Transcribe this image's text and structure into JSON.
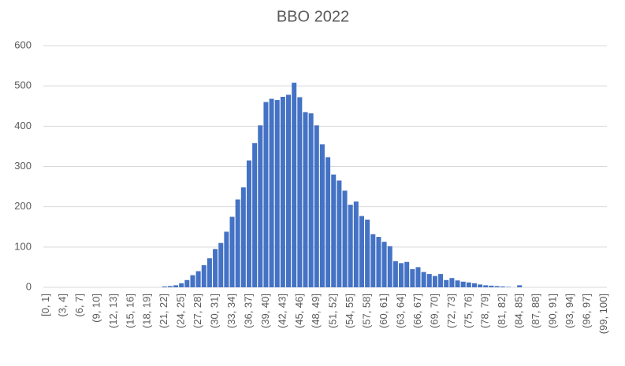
{
  "chart_data": {
    "type": "bar",
    "title": "BBO 2022",
    "categories": [
      "[0, 1]",
      null,
      null,
      "(3, 4]",
      null,
      null,
      "(6, 7]",
      null,
      null,
      "(9, 10]",
      null,
      null,
      "(12, 13]",
      null,
      null,
      "(15, 16]",
      null,
      null,
      "(18, 19]",
      null,
      null,
      "(21, 22]",
      null,
      null,
      "(24, 25]",
      null,
      null,
      "(27, 28]",
      null,
      null,
      "(30, 31]",
      null,
      null,
      "(33, 34]",
      null,
      null,
      "(36, 37]",
      null,
      null,
      "(39, 40]",
      null,
      null,
      "(42, 43]",
      null,
      null,
      "(45, 46]",
      null,
      null,
      "(48, 49]",
      null,
      null,
      "(51, 52]",
      null,
      null,
      "(54, 55]",
      null,
      null,
      "(57, 58]",
      null,
      null,
      "(60, 61]",
      null,
      null,
      "(63, 64]",
      null,
      null,
      "(66, 67]",
      null,
      null,
      "(69, 70]",
      null,
      null,
      "(72, 73]",
      null,
      null,
      "(75, 76]",
      null,
      null,
      "(78, 79]",
      null,
      null,
      "(81, 82]",
      null,
      null,
      "(84, 85]",
      null,
      null,
      "(87, 88]",
      null,
      null,
      "(90, 91]",
      null,
      null,
      "(93, 94]",
      null,
      null,
      "(96, 97]",
      null,
      null,
      "(99, 100]"
    ],
    "values": [
      0,
      0,
      0,
      0,
      0,
      0,
      0,
      0,
      0,
      0,
      0,
      0,
      0,
      0,
      0,
      0,
      0,
      0,
      0,
      0,
      0,
      2,
      3,
      5,
      10,
      18,
      30,
      40,
      55,
      72,
      95,
      110,
      138,
      175,
      218,
      248,
      315,
      358,
      402,
      460,
      468,
      465,
      473,
      478,
      508,
      472,
      435,
      432,
      402,
      355,
      323,
      280,
      265,
      240,
      205,
      213,
      177,
      168,
      132,
      125,
      113,
      102,
      65,
      60,
      63,
      45,
      50,
      38,
      33,
      28,
      33,
      18,
      23,
      17,
      14,
      12,
      10,
      7,
      5,
      4,
      3,
      2,
      1,
      0,
      5,
      0,
      0,
      0,
      0,
      0,
      0,
      0,
      0,
      0,
      0,
      0,
      0,
      0,
      0,
      0
    ],
    "color": "#4472c4",
    "ylim": [
      0,
      600
    ],
    "yticks": [
      0,
      100,
      200,
      300,
      400,
      500,
      600
    ],
    "grid": true
  }
}
